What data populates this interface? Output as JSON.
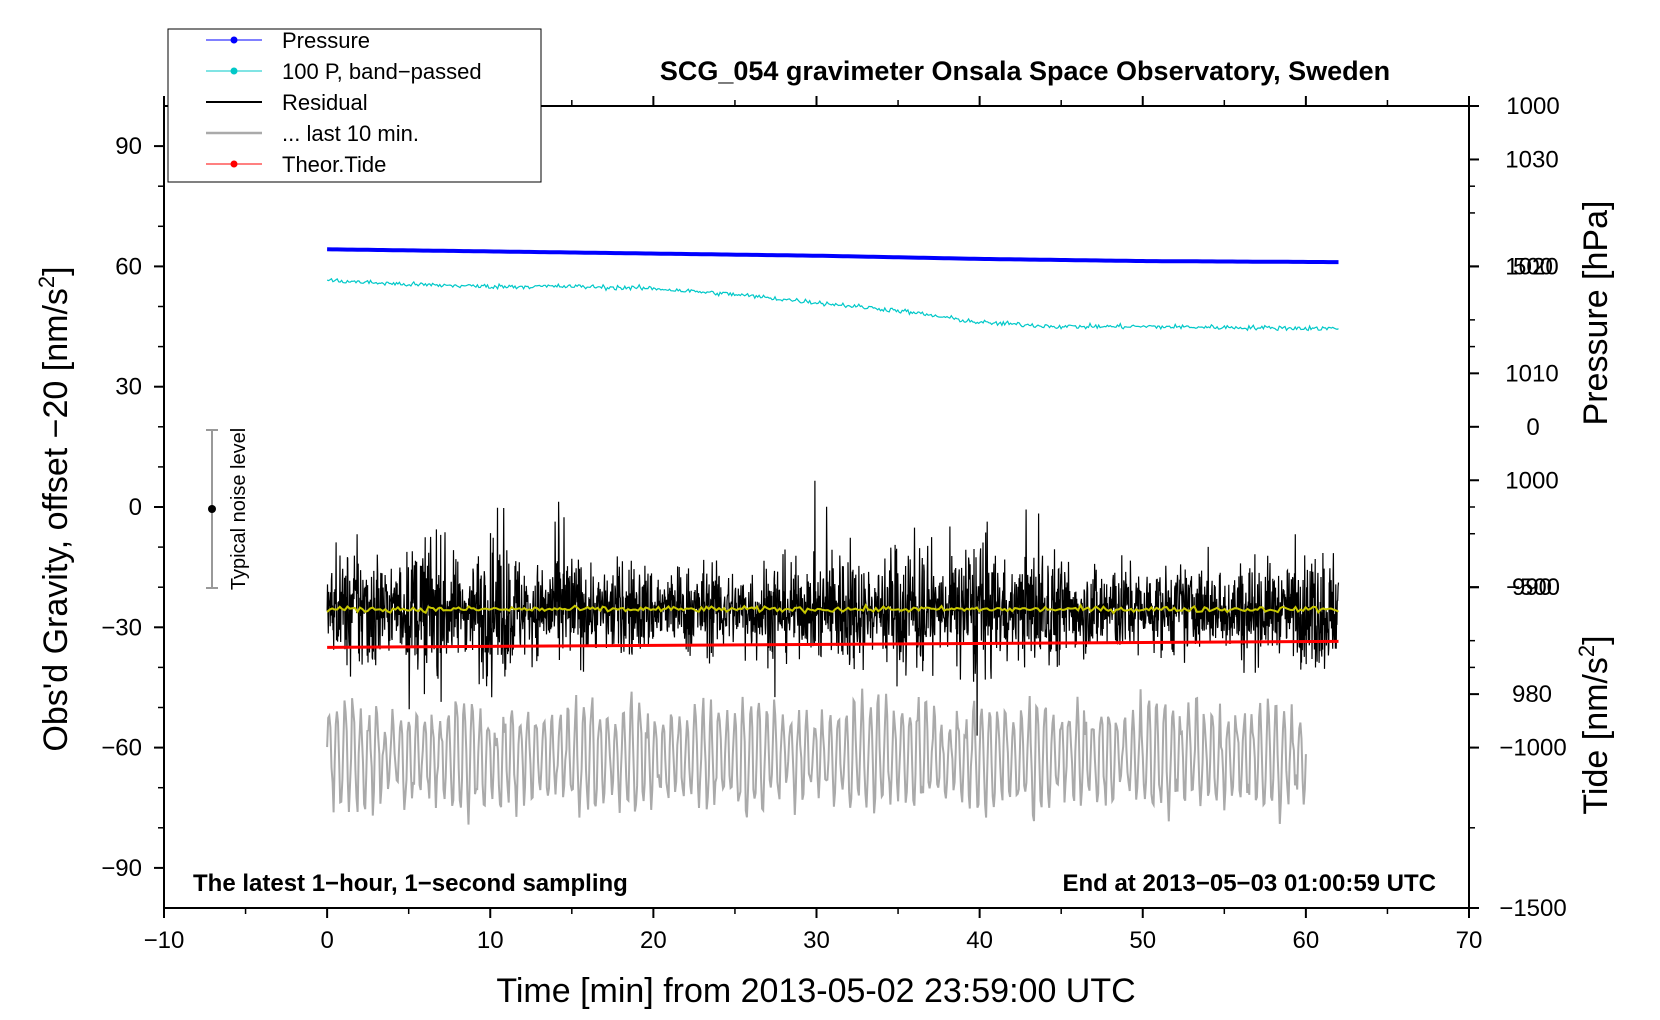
{
  "chart_data": {
    "type": "line",
    "title": "SCG_054 gravimeter Onsala Space Observatory, Sweden",
    "xlabel": "Time [min] from 2013-05-02 23:59:00 UTC",
    "ylabel_left_main": "Obs'd Gravity, offset −20 [nm/s",
    "ylabel_left_sup": "2",
    "ylabel_left_end": "]",
    "ylabel_right_pressure": "Pressure [hPa]",
    "ylabel_right_tide_main": "Tide [nm/s",
    "ylabel_right_tide_sup": "2",
    "ylabel_right_tide_end": "]",
    "xlim": [
      -10,
      70
    ],
    "ylim": [
      -100,
      100
    ],
    "pressure_ylim": [
      960,
      1035
    ],
    "tide_ylim": [
      -1500,
      1000
    ],
    "x_ticks": [
      "−10",
      "0",
      "10",
      "20",
      "30",
      "40",
      "50",
      "60",
      "70"
    ],
    "y_ticks": [
      "90",
      "60",
      "30",
      "0",
      "−30",
      "−60",
      "−90"
    ],
    "pressure_ticks": [
      "1030",
      "1020",
      "1010",
      "1000",
      "990",
      "980"
    ],
    "tide_ticks": [
      "1000",
      "500",
      "0",
      "−500",
      "−1000",
      "−1500"
    ],
    "legend": [
      {
        "label": "Pressure",
        "color": "#0000ff",
        "marker": true
      },
      {
        "label": "100 P, band−passed",
        "color": "#00c8c8",
        "marker": true
      },
      {
        "label": "Residual",
        "color": "#000000",
        "marker": false
      },
      {
        "label": "... last 10 min.",
        "color": "#aaaaaa",
        "marker": false
      },
      {
        "label": "Theor.Tide",
        "color": "#ff0000",
        "marker": true
      }
    ],
    "annotations": {
      "bottom_left": "The latest 1−hour, 1−second sampling",
      "bottom_right": "End at 2013−05−03 01:00:59 UTC",
      "noise_label": "Typical noise level"
    },
    "noise_bar": {
      "x": -7,
      "center": 0,
      "low": -20,
      "high": 20
    },
    "series": [
      {
        "name": "Pressure",
        "axis": "pressure",
        "color": "#0000ff",
        "x": [
          0,
          10,
          20,
          30,
          40,
          50,
          62
        ],
        "values": [
          1021.6,
          1021.4,
          1021.2,
          1021.0,
          1020.7,
          1020.5,
          1020.4
        ]
      },
      {
        "name": "100 P, band−passed",
        "axis": "left",
        "color": "#00c8c8",
        "x": [
          0,
          5,
          10,
          15,
          20,
          25,
          30,
          35,
          40,
          45,
          50,
          55,
          62
        ],
        "values": [
          56.5,
          55.5,
          55.0,
          55.0,
          54.5,
          53.0,
          51.0,
          49.0,
          46.0,
          45.0,
          45.0,
          44.8,
          44.5
        ]
      },
      {
        "name": "Residual",
        "axis": "left",
        "color": "#000000",
        "x_range": [
          0,
          62
        ],
        "center": -25.5,
        "typical_amplitude": 20,
        "max": 15,
        "min": -57
      },
      {
        "name": "Residual mean",
        "axis": "left",
        "color": "#c8c800",
        "x": [
          0,
          62
        ],
        "values": [
          -25.5,
          -25.5
        ]
      },
      {
        "name": "Theor.Tide",
        "axis": "left",
        "color": "#ff0000",
        "x": [
          0,
          62
        ],
        "values": [
          -35,
          -33.5
        ]
      },
      {
        "name": "... last 10 min.",
        "axis": "left",
        "color": "#aaaaaa",
        "x_range": [
          0,
          60
        ],
        "center": -62,
        "typical_amplitude": 12,
        "max": -45,
        "min": -88
      }
    ]
  }
}
